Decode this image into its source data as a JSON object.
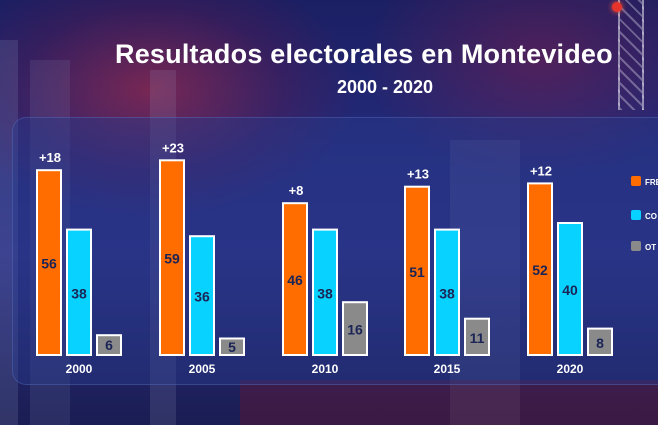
{
  "colors": {
    "frente": "#ff6d00",
    "coalicion": "#08d2ff",
    "otros": "#8a8a8a",
    "value_text": "#1b2456",
    "label_text": "#ffffff"
  },
  "chart_data": {
    "type": "bar",
    "title": "Resultados electorales en Montevideo",
    "subtitle": "2000 - 2020",
    "categories": [
      "2000",
      "2005",
      "2010",
      "2015",
      "2020"
    ],
    "series": [
      {
        "name": "FRE",
        "values": [
          56,
          59,
          46,
          51,
          52
        ]
      },
      {
        "name": "CO",
        "values": [
          38,
          36,
          38,
          38,
          40
        ]
      },
      {
        "name": "OT",
        "values": [
          6,
          5,
          16,
          11,
          8
        ]
      }
    ],
    "differences": [
      "+18",
      "+23",
      "+8",
      "+13",
      "+12"
    ],
    "legend_position": "right",
    "ylim": [
      0,
      60
    ],
    "grid": false
  }
}
